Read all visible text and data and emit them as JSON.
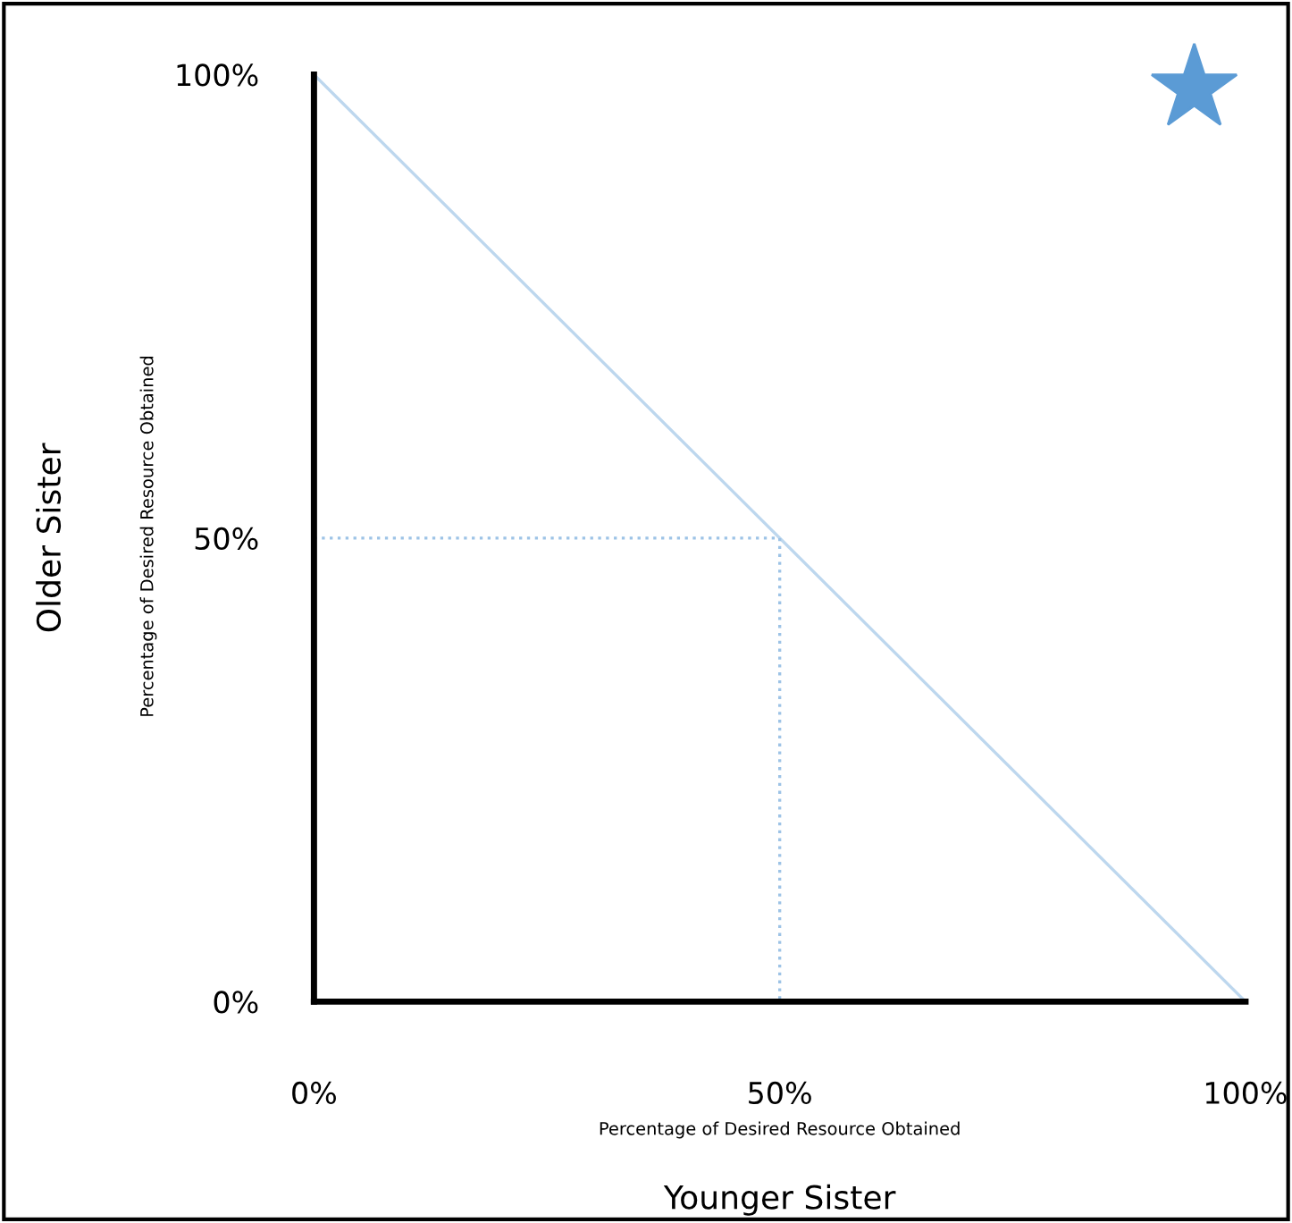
{
  "chart_data": {
    "type": "line",
    "xlabel": "Younger Sister",
    "ylabel": "Older Sister",
    "annotations": [
      "Percentage of Desired Resource Obtained",
      "Percentage of Desired Resource Obtained"
    ],
    "xlim": [
      0,
      100
    ],
    "ylim": [
      0,
      100
    ],
    "xticks": [
      {
        "value": 0,
        "label": "0%"
      },
      {
        "value": 50,
        "label": "50%"
      },
      {
        "value": 100,
        "label": "100%"
      }
    ],
    "yticks": [
      {
        "value": 0,
        "label": "0%"
      },
      {
        "value": 50,
        "label": "50%"
      },
      {
        "value": 100,
        "label": "100%"
      }
    ],
    "grid": false,
    "legend": false,
    "marker": "none",
    "series": [
      {
        "x": [
          0,
          100
        ],
        "values": [
          100,
          0
        ],
        "color": "#bdd7ee",
        "line_style": "solid"
      },
      {
        "x": [
          0,
          50
        ],
        "values": [
          50,
          50
        ],
        "color": "#9dc3e6",
        "line_style": "dotted"
      },
      {
        "x": [
          50,
          50
        ],
        "values": [
          50,
          0
        ],
        "color": "#9dc3e6",
        "line_style": "dotted"
      }
    ]
  }
}
